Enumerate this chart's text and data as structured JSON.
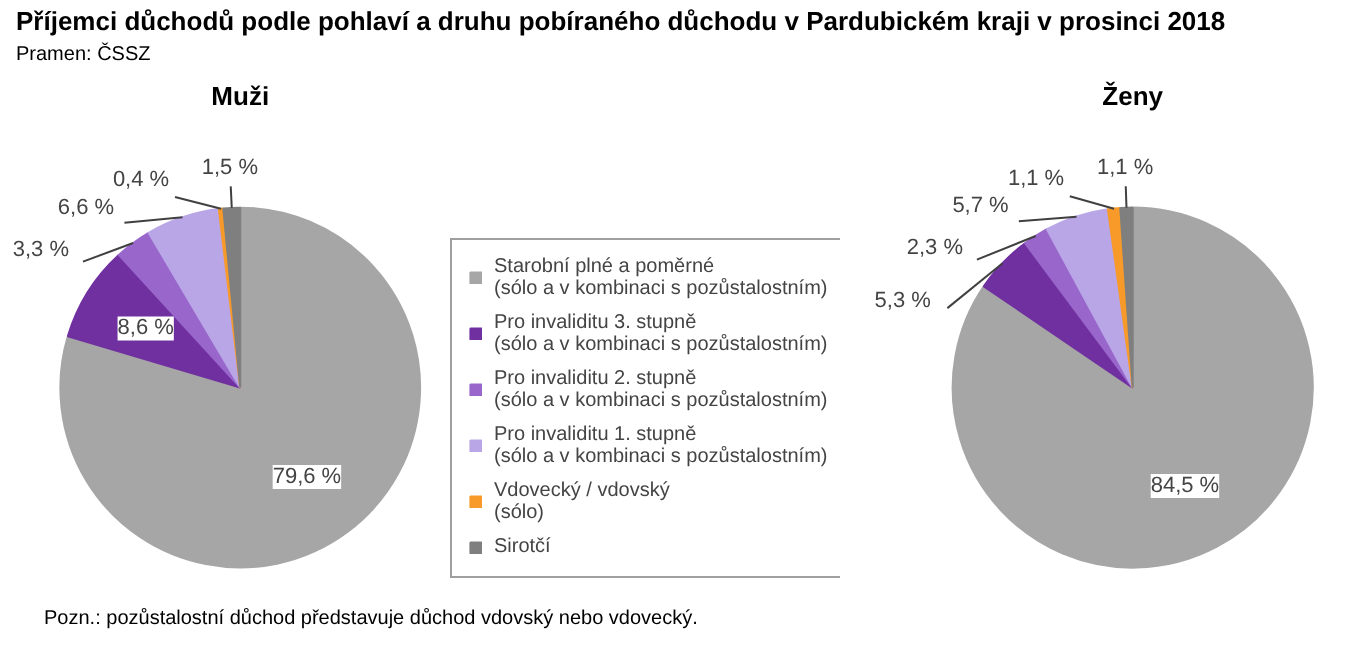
{
  "chart_data": [
    {
      "type": "pie",
      "title": "Muži",
      "categories": [
        "Starobní plné a poměrné (sólo a v kombinaci s pozůstalostním)",
        "Pro invaliditu 3. stupně (sólo a v kombinaci s pozůstalostním)",
        "Pro invaliditu 2. stupně (sólo a v kombinaci s pozůstalostním)",
        "Pro invaliditu 1. stupně (sólo a v kombinaci s pozůstalostním)",
        "Vdovecký / vdovský (sólo)",
        "Sirotčí"
      ],
      "values": [
        79.6,
        8.6,
        3.3,
        6.6,
        0.4,
        1.5
      ],
      "value_labels": [
        "79,6 %",
        "8,6 %",
        "3,3 %",
        "6,6 %",
        "0,4 %",
        "1,5 %"
      ],
      "colors": [
        "#a6a6a6",
        "#7030a0",
        "#9966cc",
        "#b9a6e6",
        "#f79a2a",
        "#7f7f7f"
      ],
      "legend": "right",
      "annotations": [
        "Příjemci důchodů podle pohlaví a druhu pobíraného důchodu v Pardubickém kraji v prosinci 2018",
        "Pramen: ČSSZ",
        "Pozn.: pozůstalostní důchod představuje důchod vdovský nebo vdovecký."
      ]
    },
    {
      "type": "pie",
      "title": "Ženy",
      "values": [
        84.5,
        5.3,
        2.3,
        5.7,
        1.1,
        1.1
      ],
      "value_labels": [
        "84,5 %",
        "5,3 %",
        "2,3 %",
        "5,7 %",
        "1,1 %",
        "1,1 %"
      ],
      "colors": [
        "#a6a6a6",
        "#7030a0",
        "#9966cc",
        "#b9a6e6",
        "#f79a2a",
        "#7f7f7f"
      ]
    }
  ]
}
